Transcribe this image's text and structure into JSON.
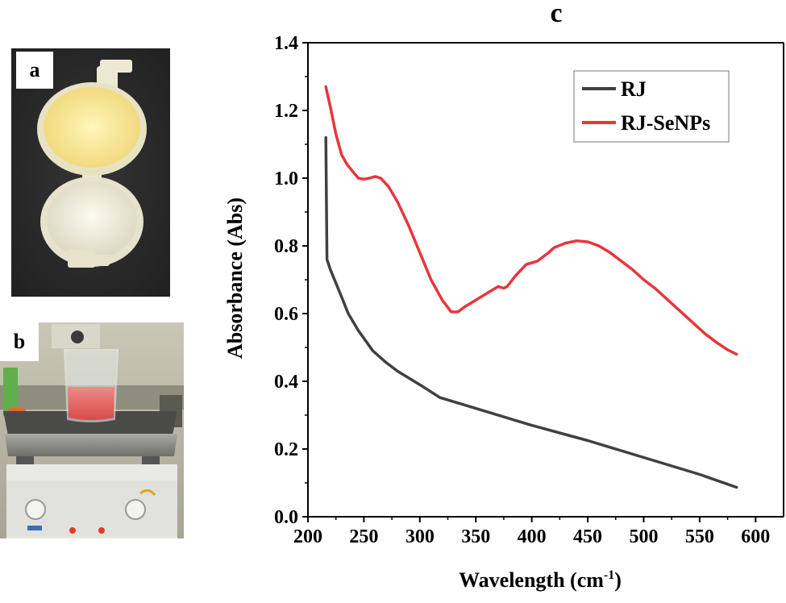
{
  "panels": {
    "a_label": "a",
    "b_label": "b",
    "c_label": "c"
  },
  "chart_data": {
    "type": "line",
    "title": "c",
    "xlabel": "Wavelength (cm",
    "xlabel_sup": "-1",
    "xlabel_end": ")",
    "ylabel": "Absorbance (Abs)",
    "xlim": [
      200,
      625
    ],
    "ylim": [
      0.0,
      1.4
    ],
    "xticks": [
      200,
      250,
      300,
      350,
      400,
      450,
      500,
      550,
      600
    ],
    "yticks": [
      0.0,
      0.2,
      0.4,
      0.6,
      0.8,
      1.0,
      1.2,
      1.4
    ],
    "ytick_labels": [
      "0.0",
      "0.2",
      "0.4",
      "0.6",
      "0.8",
      "1.0",
      "1.2",
      "1.4"
    ],
    "grid": false,
    "legend_position": "top-right",
    "series": [
      {
        "name": "RJ",
        "color": "#404040",
        "points": [
          [
            216,
            1.12
          ],
          [
            217,
            0.76
          ],
          [
            220,
            0.73
          ],
          [
            225,
            0.69
          ],
          [
            230,
            0.65
          ],
          [
            236,
            0.6
          ],
          [
            245,
            0.55
          ],
          [
            258,
            0.49
          ],
          [
            270,
            0.455
          ],
          [
            280,
            0.43
          ],
          [
            300,
            0.39
          ],
          [
            318,
            0.352
          ],
          [
            350,
            0.32
          ],
          [
            400,
            0.27
          ],
          [
            450,
            0.225
          ],
          [
            500,
            0.175
          ],
          [
            550,
            0.125
          ],
          [
            583,
            0.087
          ]
        ]
      },
      {
        "name": "RJ-SeNPs",
        "color": "#e8363c",
        "points": [
          [
            216,
            1.27
          ],
          [
            220,
            1.21
          ],
          [
            225,
            1.13
          ],
          [
            230,
            1.07
          ],
          [
            235,
            1.04
          ],
          [
            240,
            1.02
          ],
          [
            245,
            1.0
          ],
          [
            250,
            0.997
          ],
          [
            255,
            1.0
          ],
          [
            260,
            1.005
          ],
          [
            265,
            1.0
          ],
          [
            272,
            0.975
          ],
          [
            280,
            0.93
          ],
          [
            290,
            0.86
          ],
          [
            300,
            0.78
          ],
          [
            310,
            0.7
          ],
          [
            320,
            0.64
          ],
          [
            328,
            0.605
          ],
          [
            334,
            0.605
          ],
          [
            340,
            0.62
          ],
          [
            350,
            0.64
          ],
          [
            360,
            0.66
          ],
          [
            370,
            0.68
          ],
          [
            375,
            0.675
          ],
          [
            378,
            0.68
          ],
          [
            385,
            0.71
          ],
          [
            395,
            0.745
          ],
          [
            405,
            0.755
          ],
          [
            415,
            0.78
          ],
          [
            420,
            0.795
          ],
          [
            430,
            0.808
          ],
          [
            440,
            0.815
          ],
          [
            450,
            0.812
          ],
          [
            460,
            0.8
          ],
          [
            470,
            0.78
          ],
          [
            480,
            0.755
          ],
          [
            490,
            0.73
          ],
          [
            500,
            0.7
          ],
          [
            510,
            0.675
          ],
          [
            520,
            0.645
          ],
          [
            530,
            0.615
          ],
          [
            545,
            0.57
          ],
          [
            555,
            0.54
          ],
          [
            565,
            0.515
          ],
          [
            575,
            0.493
          ],
          [
            583,
            0.48
          ]
        ]
      }
    ]
  }
}
